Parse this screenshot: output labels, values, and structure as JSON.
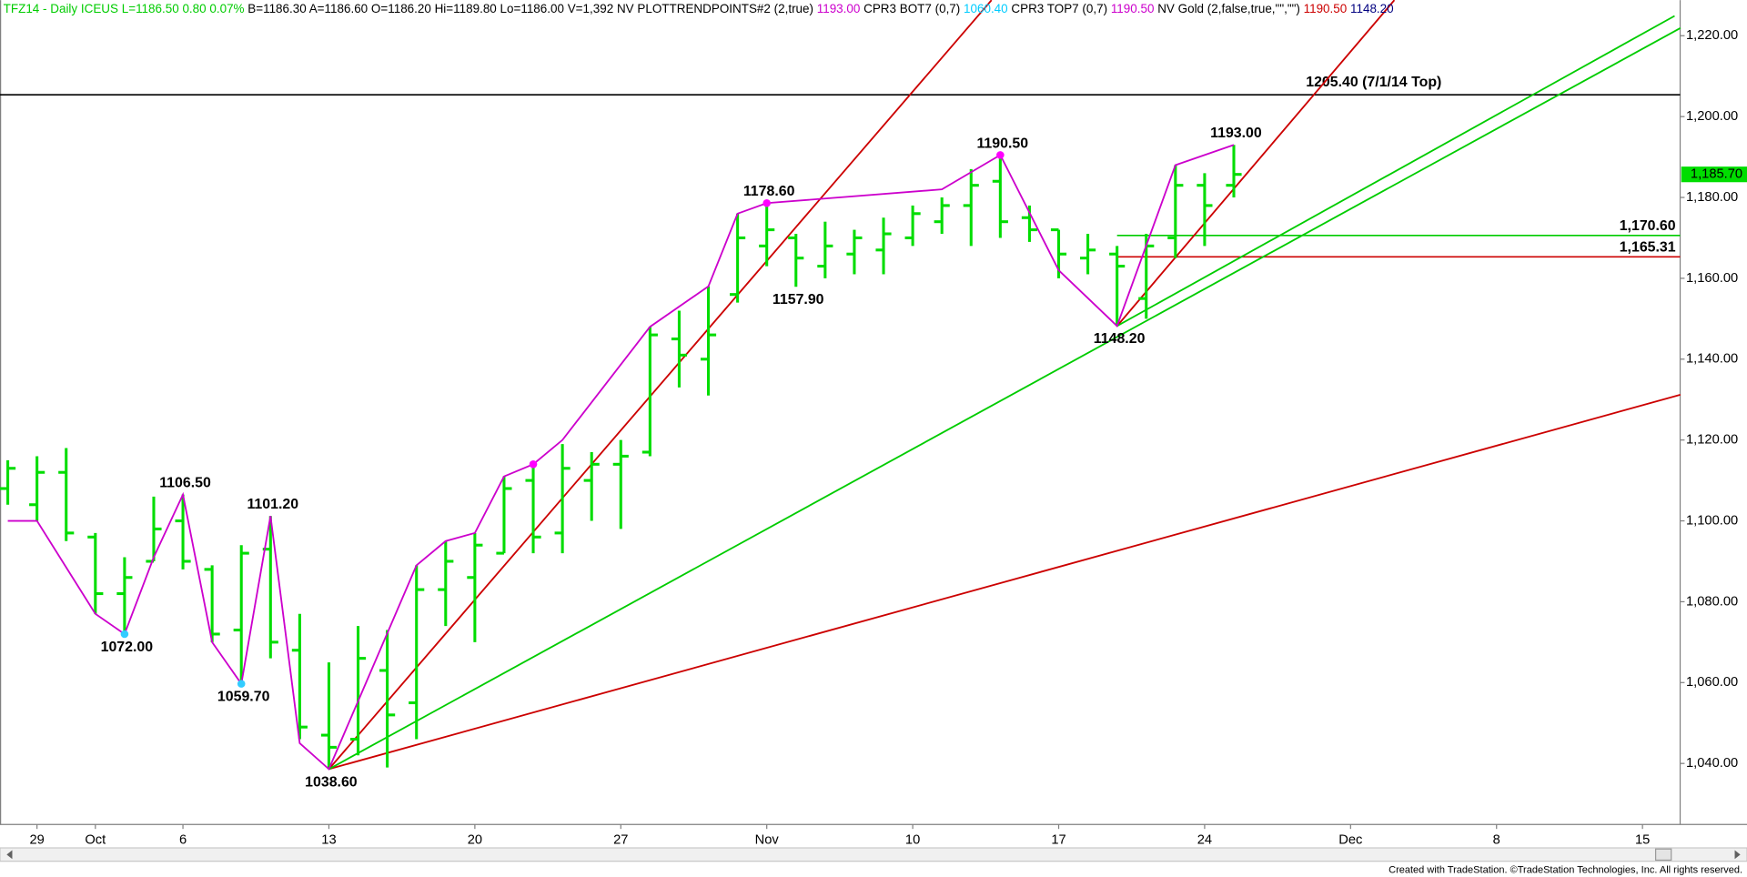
{
  "chart_data": {
    "type": "ohlc",
    "header": [
      {
        "text": "TFZ14 - Daily  ICEUS  L=1186.50  0.80  0.07%",
        "color": "#00cc00"
      },
      {
        "text": "  B=1186.30  A=1186.60  O=1186.20  Hi=1189.80  Lo=1186.00  V=1,392  NV  PLOTTRENDPOINTS#2 (2,true)  ",
        "color": "#000000"
      },
      {
        "text": "1193.00",
        "color": "#cc00cc"
      },
      {
        "text": "  CPR3 BOT7 (0,7)  ",
        "color": "#000000"
      },
      {
        "text": "1060.40",
        "color": "#00ccff"
      },
      {
        "text": "  CPR3 TOP7 (0,7)  ",
        "color": "#000000"
      },
      {
        "text": "1190.50",
        "color": "#cc00cc"
      },
      {
        "text": "  NV Gold (2,false,true,\"\",\"\")  ",
        "color": "#000000"
      },
      {
        "text": "1190.50",
        "color": "#cc0000"
      },
      {
        "text": "  ",
        "color": "#000000"
      },
      {
        "text": "1148.20",
        "color": "#000080"
      }
    ],
    "footer": "Created with TradeStation. ©TradeStation Technologies, Inc. All rights reserved.",
    "categories": [
      null,
      "29",
      null,
      "Oct",
      null,
      null,
      "6",
      null,
      null,
      null,
      null,
      "13",
      null,
      null,
      null,
      null,
      "20",
      null,
      null,
      null,
      null,
      "27",
      null,
      null,
      null,
      null,
      "Nov",
      null,
      null,
      null,
      null,
      "10",
      null,
      null,
      null,
      null,
      "17",
      null,
      null,
      null,
      null,
      "24",
      null,
      null,
      null,
      null,
      "Dec",
      null,
      null,
      null,
      null,
      "8",
      null,
      null,
      null,
      null,
      "15"
    ],
    "ohlc": {
      "color": "#00dd00",
      "open": [
        1108,
        1104,
        1112,
        1096,
        1082,
        1090,
        1100,
        1088,
        1073,
        1093,
        1068,
        1047,
        1046,
        1063,
        1055,
        1083,
        1086,
        1092,
        1110,
        1097,
        1110,
        1114,
        1117,
        1145,
        1140,
        1156,
        1168,
        1170,
        1163,
        1166,
        1167,
        1170,
        1174,
        1178,
        1184,
        1175,
        1172,
        1165,
        1166,
        1155,
        1170,
        1183,
        1183,
        null,
        null,
        null,
        null,
        null,
        null,
        null,
        null,
        null,
        null,
        null,
        null,
        null,
        null
      ],
      "high": [
        1115,
        1116,
        1118,
        1097,
        1091,
        1106,
        1106.5,
        1089,
        1094,
        1101.2,
        1077,
        1065,
        1074,
        1073,
        1089,
        1095,
        1097,
        1111,
        1114,
        1119,
        1117,
        1120,
        1148,
        1152,
        1158,
        1176,
        1178.6,
        1171,
        1174,
        1172,
        1175,
        1178,
        1180,
        1187,
        1190.5,
        1178,
        1172,
        1171,
        1168,
        1171,
        1188,
        1186,
        1193,
        null,
        null,
        null,
        null,
        null,
        null,
        null,
        null,
        null,
        null,
        null,
        null,
        null,
        null
      ],
      "low": [
        1104,
        1100,
        1095,
        1077,
        1072,
        1090,
        1088,
        1070,
        1059.7,
        1066,
        1046,
        1038.6,
        1042,
        1039,
        1046,
        1074,
        1070,
        1092,
        1092,
        1092,
        1100,
        1098,
        1116,
        1133,
        1131,
        1154,
        1163,
        1157.9,
        1160,
        1161,
        1161,
        1168,
        1171,
        1168,
        1170,
        1169,
        1160,
        1161,
        1148.2,
        1150,
        1165,
        1168,
        1180,
        null,
        null,
        null,
        null,
        null,
        null,
        null,
        null,
        null,
        null,
        null,
        null,
        null,
        null
      ],
      "close": [
        1113,
        1112,
        1097,
        1082,
        1086,
        1098,
        1090,
        1072,
        1092,
        1070,
        1049,
        1044,
        1066,
        1052,
        1083,
        1090,
        1094,
        1108,
        1096,
        1113,
        1114,
        1116,
        1146,
        1141,
        1146,
        1170,
        1172,
        1165,
        1168,
        1170,
        1171,
        1176,
        1178,
        1183,
        1174,
        1172,
        1166,
        1167,
        1163,
        1168,
        1183,
        1178,
        1185.7,
        null,
        null,
        null,
        null,
        null,
        null,
        null,
        null,
        null,
        null,
        null,
        null,
        null,
        null
      ]
    },
    "ylim": [
      1024.9,
      1228.8
    ],
    "yticks": [
      {
        "value": 1040,
        "label": "1,040.00"
      },
      {
        "value": 1060,
        "label": "1,060.00"
      },
      {
        "value": 1080,
        "label": "1,080.00"
      },
      {
        "value": 1100,
        "label": "1,100.00"
      },
      {
        "value": 1120,
        "label": "1,120.00"
      },
      {
        "value": 1140,
        "label": "1,140.00"
      },
      {
        "value": 1160,
        "label": "1,160.00"
      },
      {
        "value": 1180,
        "label": "1,180.00"
      },
      {
        "value": 1200,
        "label": "1,200.00"
      },
      {
        "value": 1220,
        "label": "1,220.00"
      }
    ],
    "zigzag": {
      "color": "#cc00cc",
      "at": [
        0,
        1,
        3,
        4,
        5,
        6,
        7,
        8,
        9,
        10,
        11,
        14,
        15,
        16,
        17,
        18,
        19,
        22,
        24,
        25,
        26,
        32,
        34,
        36,
        38,
        40,
        42
      ],
      "values": [
        1100,
        1100,
        1077,
        1072,
        1091,
        1106.5,
        1070,
        1059.7,
        1101.2,
        1045,
        1038.6,
        1089,
        1095,
        1097,
        1111,
        1114,
        1120,
        1148,
        1158,
        1176,
        1178.6,
        1182,
        1190.5,
        1162,
        1148.2,
        1188,
        1193
      ]
    },
    "markers": [
      {
        "at": 4,
        "value": 1072,
        "color": "#33ccff"
      },
      {
        "at": 8,
        "value": 1059.7,
        "color": "#33ccff"
      },
      {
        "at": 18,
        "value": 1114,
        "color": "#ff00ff"
      },
      {
        "at": 26,
        "value": 1178.6,
        "color": "#ff00ff"
      },
      {
        "at": 34,
        "value": 1190.5,
        "color": "#ff00ff"
      }
    ],
    "pivots": [
      {
        "at": 4,
        "value": 1072,
        "label": "1072.00"
      },
      {
        "at": 6,
        "value": 1106.5,
        "label": "1106.50"
      },
      {
        "at": 8,
        "value": 1059.7,
        "label": "1059.70"
      },
      {
        "at": 9,
        "value": 1101.2,
        "label": "1101.20"
      },
      {
        "at": 11,
        "value": 1038.6,
        "label": "1038.60"
      },
      {
        "at": 26,
        "value": 1178.6,
        "label": "1178.60"
      },
      {
        "at": 27,
        "value": 1157.9,
        "label": "1157.90"
      },
      {
        "at": 34,
        "value": 1190.5,
        "label": "1190.50"
      },
      {
        "at": 38,
        "value": 1148.2,
        "label": "1148.20"
      },
      {
        "at": 42,
        "value": 1193,
        "label": "1193.00"
      }
    ],
    "trendlines": [
      {
        "color": "#cc0000",
        "at": [
          11,
          33.7
        ],
        "values": [
          1038.6,
          1228.8
        ]
      },
      {
        "color": "#cc0000",
        "at": [
          38,
          47.5
        ],
        "values": [
          1148.2,
          1228.8
        ]
      },
      {
        "color": "#cc0000",
        "at": [
          11,
          57.3
        ],
        "values": [
          1038.6,
          1131.2
        ]
      },
      {
        "color": "#00cc00",
        "at": [
          11,
          57.3
        ],
        "values": [
          1038.6,
          1221.9
        ]
      },
      {
        "color": "#00cc00",
        "at": [
          38,
          57.1
        ],
        "values": [
          1148.2,
          1224.9
        ]
      }
    ],
    "levels": [
      {
        "value": 1205.4,
        "label": "1205.40 (7/1/14 Top)",
        "color": "#000000"
      },
      {
        "value": 1170.6,
        "label": "1,170.60",
        "color": "#00cc00",
        "from": 38
      },
      {
        "value": 1165.31,
        "label": "1,165.31",
        "color": "#cc0000",
        "from": 38
      }
    ],
    "last": {
      "value": 1185.7,
      "label": "1,185.70",
      "color": "#00dd00"
    }
  }
}
